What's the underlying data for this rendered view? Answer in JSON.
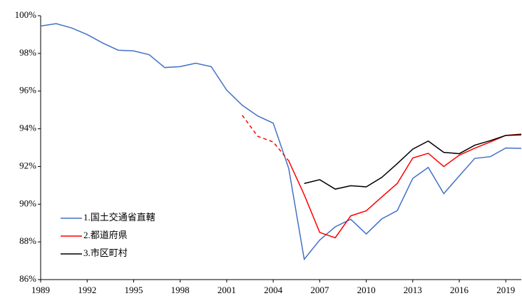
{
  "chart_data": {
    "type": "line",
    "x": [
      1989,
      1990,
      1991,
      1992,
      1993,
      1994,
      1995,
      1996,
      1997,
      1998,
      1999,
      2000,
      2001,
      2002,
      2003,
      2004,
      2005,
      2006,
      2007,
      2008,
      2009,
      2010,
      2011,
      2012,
      2013,
      2014,
      2015,
      2016,
      2017,
      2018,
      2019,
      2020
    ],
    "series": [
      {
        "name": "1.国土交通省直轄",
        "color": "#4472c4",
        "values": [
          99.45,
          99.58,
          99.35,
          99.0,
          98.55,
          98.17,
          98.13,
          97.93,
          97.25,
          97.3,
          97.48,
          97.3,
          96.05,
          95.25,
          94.68,
          94.3,
          91.9,
          87.08,
          88.1,
          88.8,
          89.2,
          88.42,
          89.22,
          89.66,
          91.37,
          91.95,
          90.56,
          91.5,
          92.43,
          92.52,
          92.98,
          92.96
        ]
      },
      {
        "name": "2.都道府県",
        "color": "#ff0000",
        "dash_until": 2005,
        "values": [
          null,
          null,
          null,
          null,
          null,
          null,
          null,
          null,
          null,
          null,
          null,
          null,
          null,
          94.72,
          93.6,
          93.3,
          92.3,
          90.5,
          88.5,
          88.22,
          89.38,
          89.65,
          90.38,
          91.1,
          92.45,
          92.7,
          92.0,
          92.6,
          92.97,
          93.3,
          93.65,
          93.72
        ]
      },
      {
        "name": "3.市区町村",
        "color": "#000000",
        "values": [
          null,
          null,
          null,
          null,
          null,
          null,
          null,
          null,
          null,
          null,
          null,
          null,
          null,
          null,
          null,
          null,
          null,
          91.1,
          91.3,
          90.8,
          90.98,
          90.92,
          91.42,
          92.15,
          92.92,
          93.35,
          92.75,
          92.68,
          93.13,
          93.37,
          93.65,
          93.68
        ]
      }
    ],
    "xlim": [
      1989,
      2020
    ],
    "xticks": [
      1989,
      1992,
      1995,
      1998,
      2001,
      2004,
      2007,
      2010,
      2013,
      2016,
      2019
    ],
    "ylim": [
      86,
      100
    ],
    "yticks": [
      {
        "value": 86,
        "label": "86%"
      },
      {
        "value": 88,
        "label": "88%"
      },
      {
        "value": 90,
        "label": "90%"
      },
      {
        "value": 92,
        "label": "92%"
      },
      {
        "value": 94,
        "label": "94%"
      },
      {
        "value": 96,
        "label": "96%"
      },
      {
        "value": 98,
        "label": "98%"
      },
      {
        "value": 100,
        "label": "100%"
      }
    ],
    "legend": "lower left"
  }
}
